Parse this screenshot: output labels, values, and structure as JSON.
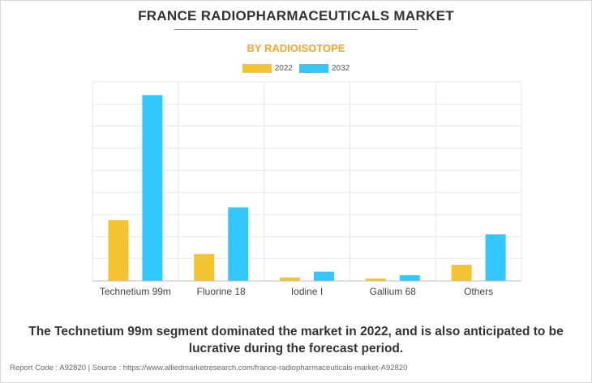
{
  "header": {
    "title": "FRANCE RADIOPHARMACEUTICALS MARKET",
    "subtitle": "BY RADIOISOTOPE"
  },
  "colors": {
    "subtitle": "#f5a623",
    "series_2022": "#f4c430",
    "series_2032": "#33c7ff",
    "grid": "#e6e6e6",
    "axis": "#bdbdbd"
  },
  "chart_data": {
    "type": "bar",
    "categories": [
      "Technetium 99m",
      "Fluorine 18",
      "Iodine I",
      "Gallium 68",
      "Others"
    ],
    "series": [
      {
        "name": "2022",
        "values": [
          27.5,
          12.2,
          1.6,
          1.1,
          7.3
        ]
      },
      {
        "name": "2032",
        "values": [
          84,
          33.2,
          4.2,
          2.6,
          21.1
        ]
      }
    ],
    "ylim": [
      0,
      90
    ],
    "y_gridlines": [
      0,
      10,
      20,
      30,
      40,
      50,
      60,
      70,
      80,
      90
    ],
    "ytick_labels_visible": false,
    "grid": true,
    "legend_position": "top-center"
  },
  "summary": "The Technetium 99m segment dominated the market in 2022, and is also anticipated to be lucrative during the forecast period.",
  "footer": "Report Code : A92820  |  Source : https://www.alliedmarketresearch.com/france-radiopharmaceuticals-market-A92820"
}
